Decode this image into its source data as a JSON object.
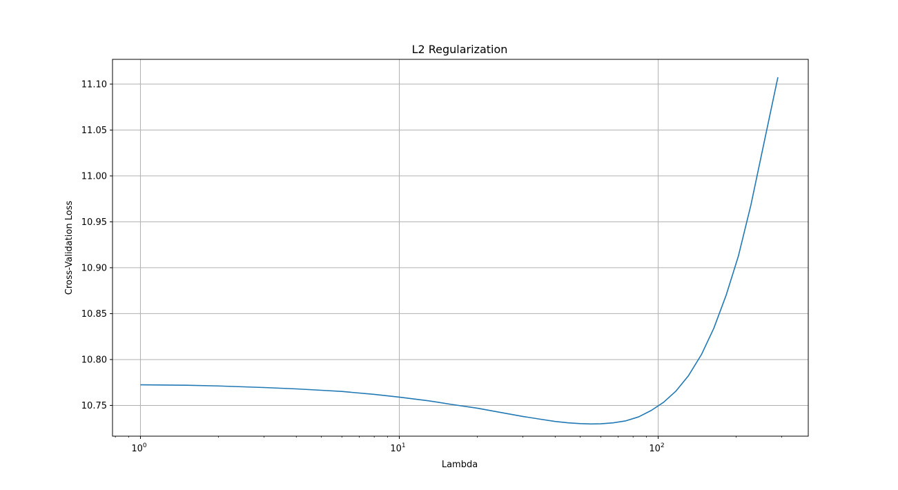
{
  "chart_data": {
    "type": "line",
    "title": "L2 Regularization",
    "xlabel": "Lambda",
    "ylabel": "Cross-Validation Loss",
    "xscale": "log",
    "xlim": [
      0.78,
      380
    ],
    "ylim": [
      10.7165,
      11.127
    ],
    "grid": true,
    "line_color": "#1f77b4",
    "x_ticks": [
      {
        "value": 1,
        "base": "10",
        "exp": "0"
      },
      {
        "value": 10,
        "base": "10",
        "exp": "1"
      },
      {
        "value": 100,
        "base": "10",
        "exp": "2"
      }
    ],
    "y_ticks": [
      {
        "value": 10.75,
        "label": "10.75"
      },
      {
        "value": 10.8,
        "label": "10.80"
      },
      {
        "value": 10.85,
        "label": "10.85"
      },
      {
        "value": 10.9,
        "label": "10.90"
      },
      {
        "value": 10.95,
        "label": "10.95"
      },
      {
        "value": 11.0,
        "label": "11.00"
      },
      {
        "value": 11.05,
        "label": "11.05"
      },
      {
        "value": 11.1,
        "label": "11.10"
      }
    ],
    "series": [
      {
        "x": [
          1.0,
          1.5,
          2.0,
          3.0,
          4.0,
          5.0,
          6.0,
          8.0,
          10.0,
          13.0,
          16.0,
          20.0,
          25.0,
          30.0,
          35.0,
          40.0,
          45.0,
          50.0,
          55.0,
          60.0,
          67.0,
          75.0,
          84.0,
          94.0,
          105.0,
          117.0,
          131.0,
          147.0,
          164.0,
          183.0,
          204.0,
          228.0,
          255.0,
          290.0
        ],
        "y": [
          10.7725,
          10.772,
          10.7712,
          10.7695,
          10.768,
          10.7665,
          10.7652,
          10.762,
          10.759,
          10.755,
          10.751,
          10.747,
          10.742,
          10.738,
          10.735,
          10.7325,
          10.731,
          10.7302,
          10.7298,
          10.73,
          10.731,
          10.7332,
          10.7375,
          10.7445,
          10.7535,
          10.7655,
          10.7825,
          10.8055,
          10.834,
          10.87,
          10.9125,
          10.968,
          11.033,
          11.1075
        ]
      }
    ]
  }
}
